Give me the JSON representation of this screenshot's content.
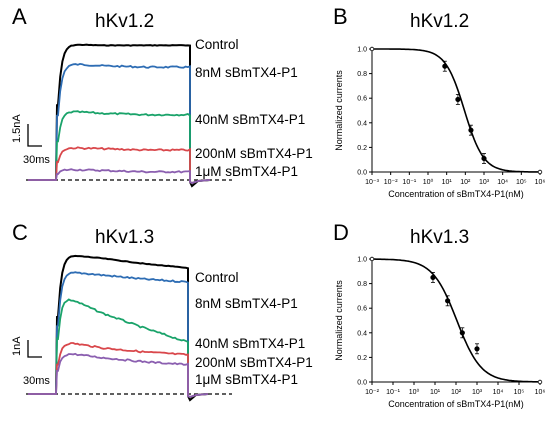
{
  "chart_data": [
    {
      "panel": "A",
      "type": "line",
      "title": "hKv1.2",
      "scale_bar": {
        "current": "1.5nA",
        "time": "30ms"
      },
      "series": [
        {
          "name": "Control",
          "color": "#000000",
          "values": [
            1.0,
            0.99,
            0.99,
            0.99
          ]
        },
        {
          "name": "8nM sBmTX4-P1",
          "color": "#2e6db4",
          "values": [
            0.86,
            0.84,
            0.83,
            0.83
          ]
        },
        {
          "name": "40nM sBmTX4-P1",
          "color": "#1aa36a",
          "values": [
            0.51,
            0.49,
            0.48,
            0.48
          ]
        },
        {
          "name": "200nM sBmTX4-P1",
          "color": "#d9474b",
          "values": [
            0.24,
            0.23,
            0.22,
            0.22
          ]
        },
        {
          "name": "1μM sBmTX4-P1",
          "color": "#8b5fb0",
          "values": [
            0.08,
            0.07,
            0.06,
            0.06
          ]
        }
      ]
    },
    {
      "panel": "B",
      "type": "scatter",
      "title": "hKv1.2",
      "xlabel": "Concentration of sBmTX4-P1(nM)",
      "ylabel": "Normalized currents",
      "xscale": "log",
      "xlim": [
        0.001,
        1000000
      ],
      "ylim": [
        0,
        1.0
      ],
      "xticks": [
        "10⁻³",
        "10⁻²",
        "10⁻¹",
        "10⁰",
        "10¹",
        "10²",
        "10³",
        "10⁴",
        "10⁵",
        "10⁶"
      ],
      "yticks": [
        "0.0",
        "0.2",
        "0.4",
        "0.6",
        "0.8",
        "1.0"
      ],
      "points": [
        {
          "x": 0.001,
          "y": 1.0
        },
        {
          "x": 8,
          "y": 0.86
        },
        {
          "x": 40,
          "y": 0.59
        },
        {
          "x": 200,
          "y": 0.34
        },
        {
          "x": 1000,
          "y": 0.11
        },
        {
          "x": 1000000,
          "y": 0.0
        }
      ],
      "fit": {
        "ic50": 90,
        "hill": 0.85
      }
    },
    {
      "panel": "C",
      "type": "line",
      "title": "hKv1.3",
      "scale_bar": {
        "current": "1nA",
        "time": "30ms"
      },
      "series": [
        {
          "name": "Control",
          "color": "#000000",
          "values": [
            1.0,
            0.97,
            0.93,
            0.9
          ]
        },
        {
          "name": "8nM sBmTX4-P1",
          "color": "#2e6db4",
          "values": [
            0.88,
            0.85,
            0.82,
            0.8
          ]
        },
        {
          "name": "40nM sBmTX4-P1",
          "color": "#1aa36a",
          "values": [
            0.72,
            0.58,
            0.47,
            0.37
          ]
        },
        {
          "name": "200nM sBmTX4-P1",
          "color": "#d9474b",
          "values": [
            0.38,
            0.33,
            0.3,
            0.28
          ]
        },
        {
          "name": "1μM sBmTX4-P1",
          "color": "#8b5fb0",
          "values": [
            0.3,
            0.26,
            0.23,
            0.21
          ]
        }
      ]
    },
    {
      "panel": "D",
      "type": "scatter",
      "title": "hKv1.3",
      "xlabel": "Concentration of sBmTX4-P1(nM)",
      "ylabel": "Normalized currents",
      "xscale": "log",
      "xlim": [
        0.01,
        1000000
      ],
      "ylim": [
        0,
        1.0
      ],
      "xticks": [
        "10⁻²",
        "10⁻¹",
        "10⁰",
        "10¹",
        "10²",
        "10³",
        "10⁴",
        "10⁵",
        "10⁶"
      ],
      "yticks": [
        "0.0",
        "0.2",
        "0.4",
        "0.6",
        "0.8",
        "1.0"
      ],
      "points": [
        {
          "x": 0.01,
          "y": 1.0
        },
        {
          "x": 8,
          "y": 0.85
        },
        {
          "x": 40,
          "y": 0.66
        },
        {
          "x": 200,
          "y": 0.4
        },
        {
          "x": 1000,
          "y": 0.27
        },
        {
          "x": 1000000,
          "y": 0.0
        }
      ],
      "fit": {
        "ic50": 110,
        "hill": 0.75
      }
    }
  ]
}
